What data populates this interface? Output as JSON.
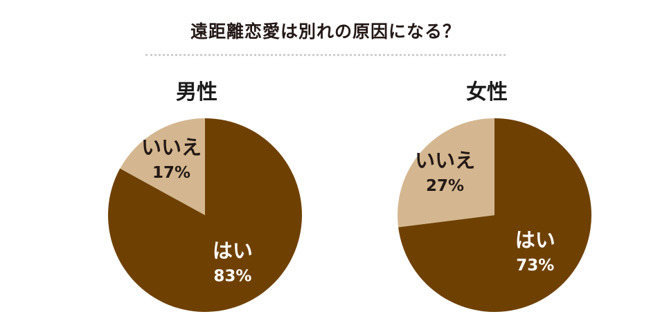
{
  "header": {
    "title": "遠距離恋愛は別れの原因になる？"
  },
  "colors": {
    "yes": "#6e4103",
    "no": "#d4b790",
    "yes_text": "#ffffff",
    "no_text": "#231815"
  },
  "chart_data": [
    {
      "type": "pie",
      "title": "男性",
      "slices": [
        {
          "label": "はい",
          "value": 83,
          "display": "83%"
        },
        {
          "label": "いいえ",
          "value": 17,
          "display": "17%"
        }
      ]
    },
    {
      "type": "pie",
      "title": "女性",
      "slices": [
        {
          "label": "はい",
          "value": 73,
          "display": "73%"
        },
        {
          "label": "いいえ",
          "value": 27,
          "display": "27%"
        }
      ]
    }
  ]
}
